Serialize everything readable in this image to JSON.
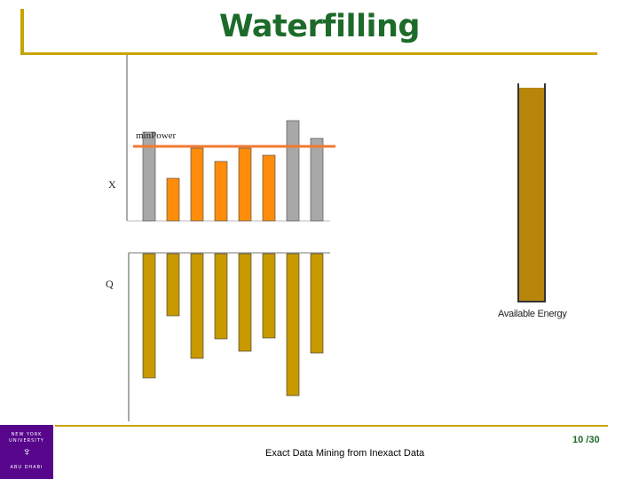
{
  "title": "Waterfilling",
  "labels": {
    "x": "X",
    "q": "Q",
    "min_power": "minPower",
    "available_energy": "Available Energy"
  },
  "footer": {
    "caption": "Exact Data Mining from Inexact Data",
    "page": "10 /30",
    "logo": {
      "line1": "NEW YORK",
      "line2": "UNIVERSITY",
      "line3": "ABU DHABI"
    }
  },
  "colors": {
    "title": "#1d6b2a",
    "accent": "#c8a400",
    "gray_bar": "#a8a8a8",
    "orange_bar": "#ff8c0a",
    "level_line": "#f07a30",
    "q_bar": "#c89a00",
    "tank_fill": "#b8860b",
    "logo": "#57068c"
  },
  "chart_data": {
    "type": "bar",
    "x_bars": [
      {
        "value": 100,
        "color": "gray"
      },
      {
        "value": 48,
        "color": "orange"
      },
      {
        "value": 82,
        "color": "orange"
      },
      {
        "value": 67,
        "color": "orange"
      },
      {
        "value": 82,
        "color": "orange"
      },
      {
        "value": 74,
        "color": "orange"
      },
      {
        "value": 113,
        "color": "gray"
      },
      {
        "value": 93,
        "color": "gray"
      }
    ],
    "min_power_level": 84,
    "q_bars": [
      140,
      70,
      118,
      96,
      110,
      95,
      160,
      112
    ],
    "tank_fill_fraction": 0.98
  }
}
